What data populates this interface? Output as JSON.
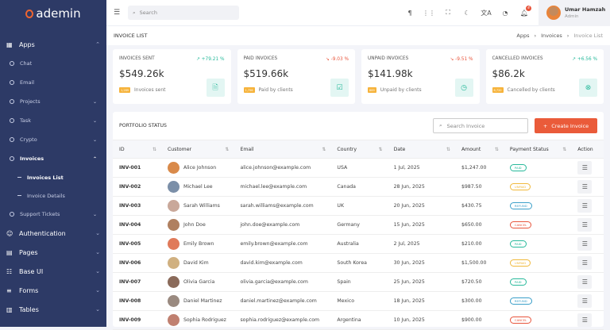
{
  "brand": {
    "name": "ademin",
    "color": "#f0652f"
  },
  "sidebar": {
    "apps": {
      "label": "Apps",
      "items": [
        {
          "label": "Chat",
          "chevron": false
        },
        {
          "label": "Email",
          "chevron": false
        },
        {
          "label": "Projects",
          "chevron": true
        },
        {
          "label": "Task",
          "chevron": true
        },
        {
          "label": "Crypto",
          "chevron": true
        }
      ],
      "invoices": {
        "label": "Invoices",
        "subitems": [
          {
            "label": "Invoices List",
            "active": true
          },
          {
            "label": "Invoice Details",
            "active": false
          }
        ]
      },
      "support": {
        "label": "Support Tickets"
      }
    },
    "sections": [
      {
        "label": "Authentication",
        "icon": "user-circle-icon"
      },
      {
        "label": "Pages",
        "icon": "pages-icon"
      },
      {
        "label": "Base UI",
        "icon": "layout-icon"
      },
      {
        "label": "Forms",
        "icon": "form-icon"
      },
      {
        "label": "Tables",
        "icon": "table-icon"
      }
    ]
  },
  "topbar": {
    "search_placeholder": "Search",
    "notifications": "4",
    "user": {
      "name": "Umar Hamzah",
      "role": "Admin"
    }
  },
  "page": {
    "title": "INVOICE LIST",
    "breadcrumb": [
      "Apps",
      "Invoices",
      "Invoice List"
    ]
  },
  "cards": [
    {
      "title": "INVOICES SENT",
      "trend": "↗ +79.21 %",
      "trend_dir": "up",
      "value": "$549.26k",
      "badge": "1,289",
      "caption": "Invoices sent",
      "icon": "file-icon"
    },
    {
      "title": "PAID INVOICES",
      "trend": "↘ -9.03 %",
      "trend_dir": "down",
      "value": "$519.66k",
      "badge": "1,756",
      "caption": "Paid by clients",
      "icon": "check-square-icon"
    },
    {
      "title": "UNPAID INVOICES",
      "trend": "↘ -9.51 %",
      "trend_dir": "down",
      "value": "$141.98k",
      "badge": "889",
      "caption": "Unpaid by clients",
      "icon": "clock-icon"
    },
    {
      "title": "CANCELLED INVOICES",
      "trend": "↗ +6.56 %",
      "trend_dir": "up",
      "value": "$86.2k",
      "badge": "8,720",
      "caption": "Cancelled by clients",
      "icon": "x-circle-icon"
    }
  ],
  "portfolio": {
    "title": "PORTFOLIO STATUS",
    "search_placeholder": "Search Invoice",
    "create_label": "Create Invoice",
    "columns": [
      "ID",
      "Customer",
      "Email",
      "Country",
      "Date",
      "Amount",
      "Payment Status",
      "Action"
    ],
    "rows": [
      {
        "id": "INV-001",
        "customer": "Alice Johnson",
        "email": "alice.johnson@example.com",
        "country": "USA",
        "date": "1 Jul, 2025",
        "amount": "$1,247.00",
        "status": "PAID"
      },
      {
        "id": "INV-002",
        "customer": "Michael Lee",
        "email": "michael.lee@example.com",
        "country": "Canada",
        "date": "28 Jun, 2025",
        "amount": "$987.50",
        "status": "UNPAID"
      },
      {
        "id": "INV-003",
        "customer": "Sarah Williams",
        "email": "sarah.williams@example.com",
        "country": "UK",
        "date": "20 Jun, 2025",
        "amount": "$430.75",
        "status": "REFUND"
      },
      {
        "id": "INV-004",
        "customer": "John Doe",
        "email": "john.doe@example.com",
        "country": "Germany",
        "date": "15 Jun, 2025",
        "amount": "$650.00",
        "status": "CANCEL"
      },
      {
        "id": "INV-005",
        "customer": "Emily Brown",
        "email": "emily.brown@example.com",
        "country": "Australia",
        "date": "2 Jul, 2025",
        "amount": "$210.00",
        "status": "PAID"
      },
      {
        "id": "INV-006",
        "customer": "David Kim",
        "email": "david.kim@example.com",
        "country": "South Korea",
        "date": "30 Jun, 2025",
        "amount": "$1,500.00",
        "status": "UNPAID"
      },
      {
        "id": "INV-007",
        "customer": "Olivia Garcia",
        "email": "olivia.garcia@example.com",
        "country": "Spain",
        "date": "25 Jun, 2025",
        "amount": "$720.50",
        "status": "PAID"
      },
      {
        "id": "INV-008",
        "customer": "Daniel Martinez",
        "email": "daniel.martinez@example.com",
        "country": "Mexico",
        "date": "18 Jun, 2025",
        "amount": "$300.00",
        "status": "REFUND"
      },
      {
        "id": "INV-009",
        "customer": "Sophia Rodriguez",
        "email": "sophia.rodriguez@example.com",
        "country": "Argentina",
        "date": "10 Jun, 2025",
        "amount": "$900.00",
        "status": "CANCEL"
      }
    ]
  },
  "status_colors": {
    "PAID": "#26b99a",
    "UNPAID": "#f0b93b",
    "REFUND": "#3a9fc9",
    "CANCEL": "#e8533a"
  },
  "trend_colors": {
    "up": "#26b99a",
    "down": "#e8533a"
  }
}
